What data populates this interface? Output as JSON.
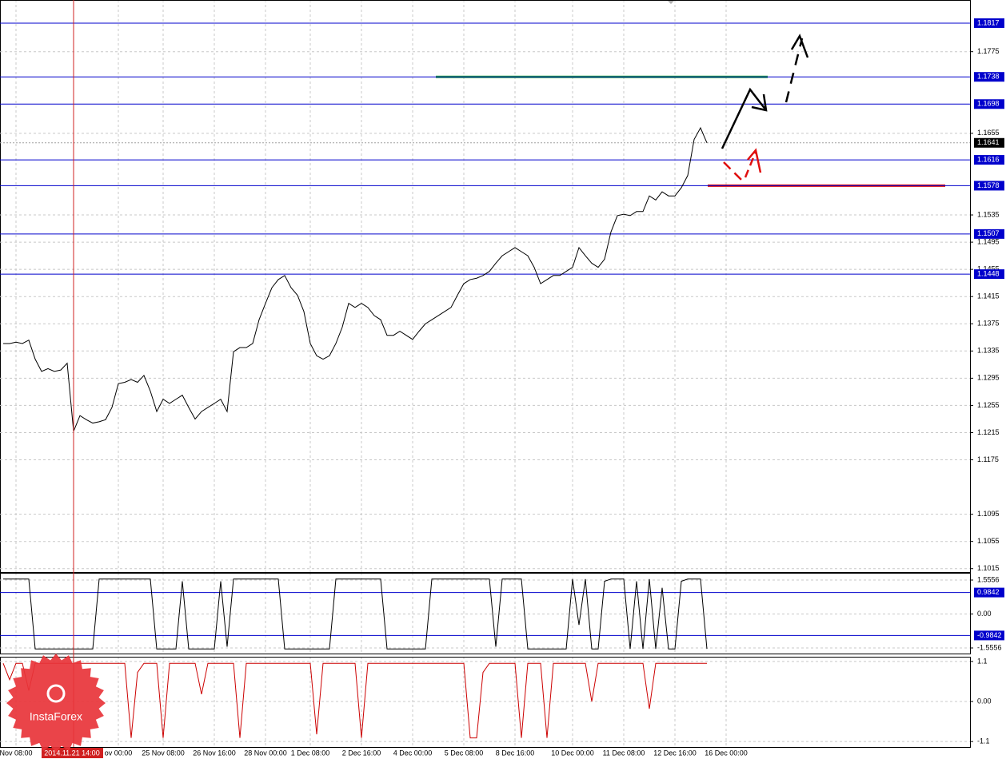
{
  "chart_data": [
    {
      "type": "line",
      "color": "#000000",
      "grid": true,
      "categories": [
        null,
        null,
        "Nov 08:00",
        null,
        null,
        null,
        null,
        null,
        null,
        null,
        null,
        null,
        null,
        null,
        null,
        null,
        null,
        null,
        "ov 00:00",
        null,
        null,
        null,
        null,
        null,
        null,
        "25 Nov 08:00",
        null,
        null,
        null,
        null,
        null,
        null,
        null,
        "26 Nov 16:00",
        null,
        null,
        null,
        null,
        null,
        null,
        null,
        "28 Nov 00:00",
        null,
        null,
        null,
        null,
        null,
        null,
        "1 Dec 08:00",
        null,
        null,
        null,
        null,
        null,
        null,
        null,
        "2 Dec 16:00",
        null,
        null,
        null,
        null,
        null,
        null,
        null,
        "4 Dec 00:00",
        null,
        null,
        null,
        null,
        null,
        null,
        null,
        "5 Dec 08:00",
        null,
        null,
        null,
        null,
        null,
        null,
        null,
        "8 Dec 16:00",
        null,
        null,
        null,
        null,
        null,
        null,
        null,
        null,
        "10 Dec 00:00",
        null,
        null,
        null,
        null,
        null,
        null,
        null,
        "11 Dec 08:00",
        null,
        null,
        null,
        null,
        null,
        null,
        null,
        "12 Dec 16:00",
        null,
        null,
        null,
        null,
        null,
        null,
        null,
        "16 Dec 00:00"
      ],
      "values": [
        1.1346,
        1.1346,
        1.1348,
        1.1346,
        1.1351,
        1.1323,
        1.1305,
        1.1309,
        1.1305,
        1.1307,
        1.1317,
        1.1217,
        1.124,
        1.1234,
        1.1229,
        1.1231,
        1.1234,
        1.1252,
        1.1287,
        1.1289,
        1.1293,
        1.1289,
        1.1299,
        1.1276,
        1.1246,
        1.1264,
        1.1258,
        1.1264,
        1.127,
        1.1252,
        1.1235,
        1.1246,
        1.1252,
        1.1258,
        1.1264,
        1.1246,
        1.1334,
        1.134,
        1.134,
        1.1346,
        1.1381,
        1.1405,
        1.1428,
        1.144,
        1.1446,
        1.1428,
        1.1417,
        1.1393,
        1.1346,
        1.1328,
        1.1323,
        1.1328,
        1.1346,
        1.137,
        1.1405,
        1.1399,
        1.1405,
        1.1399,
        1.1387,
        1.1381,
        1.1358,
        1.1358,
        1.1364,
        1.1358,
        1.1352,
        1.1364,
        1.1375,
        1.1381,
        1.1387,
        1.1393,
        1.1399,
        1.1417,
        1.1434,
        1.144,
        1.1442,
        1.1446,
        1.1452,
        1.1464,
        1.1475,
        1.1481,
        1.1487,
        1.1481,
        1.1475,
        1.1458,
        1.1434,
        1.144,
        1.1446,
        1.1446,
        1.1452,
        1.1458,
        1.1487,
        1.1475,
        1.1464,
        1.1458,
        1.147,
        1.151,
        1.1534,
        1.1536,
        1.1534,
        1.154,
        1.154,
        1.1563,
        1.1557,
        1.1569,
        1.1563,
        1.1563,
        1.1575,
        1.1593,
        1.1646,
        1.1663,
        1.1641,
        null,
        null,
        null
      ],
      "ylim": [
        1.101,
        1.1851
      ],
      "yticks": [
        1.1775,
        1.1655,
        1.1535,
        1.1495,
        1.1455,
        1.1415,
        1.1375,
        1.1335,
        1.1295,
        1.1255,
        1.1215,
        1.1175,
        1.1095,
        1.1055,
        1.1015
      ],
      "levels": [
        1.1817,
        1.1738,
        1.1698,
        1.1616,
        1.1578,
        1.1507,
        1.1448
      ],
      "level_color": "#0000cc",
      "current_price": 1.1641,
      "lines": [
        {
          "value": 1.1738,
          "color": "#22aa33"
        },
        {
          "value": 1.1578,
          "color": "#e01010"
        }
      ],
      "crosshair_label": "2014.11.21 14:00"
    },
    {
      "type": "line",
      "color": "#000000",
      "grid": true,
      "values": [
        1.6,
        1.6,
        1.6,
        1.6,
        1.6,
        -1.6,
        -1.6,
        -1.6,
        -1.6,
        -1.6,
        -1.6,
        -1.6,
        -1.6,
        -1.6,
        -1.6,
        1.6,
        1.6,
        1.6,
        1.6,
        1.6,
        1.6,
        1.6,
        1.6,
        1.6,
        -1.6,
        -1.6,
        -1.6,
        -1.6,
        1.5,
        -1.6,
        -1.6,
        -1.6,
        -1.6,
        -1.6,
        1.5,
        -1.5,
        1.6,
        1.6,
        1.6,
        1.6,
        1.6,
        1.6,
        1.6,
        1.6,
        -1.6,
        -1.6,
        -1.6,
        -1.6,
        -1.6,
        -1.6,
        -1.6,
        -1.6,
        1.6,
        1.6,
        1.6,
        1.6,
        1.6,
        1.6,
        1.6,
        1.6,
        -1.6,
        -1.6,
        -1.6,
        -1.6,
        -1.6,
        -1.6,
        -1.6,
        1.6,
        1.6,
        1.6,
        1.6,
        1.6,
        1.6,
        1.6,
        1.6,
        1.6,
        1.6,
        -1.5,
        1.6,
        1.6,
        1.6,
        1.6,
        -1.6,
        -1.6,
        -1.6,
        -1.6,
        -1.6,
        -1.6,
        -1.6,
        1.6,
        -0.5,
        1.6,
        -1.6,
        -1.6,
        1.5,
        1.6,
        1.6,
        1.6,
        -1.6,
        1.5,
        -1.6,
        1.6,
        -1.6,
        1.2,
        -1.6,
        -1.6,
        1.5,
        1.6,
        1.6,
        1.6,
        -1.6,
        null,
        null,
        null
      ],
      "ylim": [
        -1.812,
        1.885
      ],
      "yticks": [
        1.5556,
        {
          "value": 0,
          "label": "0.00"
        },
        -1.5556
      ],
      "levels": [
        0.9842,
        -0.9842
      ],
      "level_color": "#0000cc"
    },
    {
      "type": "line",
      "color": "#cc0000",
      "grid": true,
      "values": [
        1.05,
        0.6,
        1.05,
        1.05,
        0.3,
        1.05,
        1.05,
        1.05,
        1.05,
        1.05,
        1.05,
        1.05,
        1.05,
        1.05,
        1.05,
        1.05,
        1.05,
        1.05,
        1.05,
        1.05,
        -1,
        0.8,
        1.05,
        1.05,
        1.05,
        -1,
        1.05,
        1.05,
        1.05,
        1.05,
        1.05,
        0.2,
        1.05,
        1.05,
        1.05,
        1.05,
        1.05,
        -1,
        1.05,
        1.05,
        1.05,
        1.05,
        1.05,
        1.05,
        1.05,
        1.05,
        1.05,
        1.05,
        1.05,
        -0.9,
        1.05,
        1.05,
        1.05,
        1.05,
        1.05,
        1.05,
        -1,
        1.05,
        1.05,
        1.05,
        1.05,
        1.05,
        1.05,
        1.05,
        1.05,
        1.05,
        1.05,
        1.05,
        1.05,
        1.05,
        1.05,
        1.05,
        1.05,
        -1,
        -1,
        0.8,
        1.05,
        1.05,
        1.05,
        1.05,
        1.05,
        -1,
        1.05,
        1.05,
        1.05,
        -1,
        1.05,
        1.05,
        1.05,
        1.05,
        1.05,
        1.05,
        0,
        1.05,
        1.05,
        1.05,
        1.05,
        1.05,
        1.05,
        1.05,
        1.05,
        -0.2,
        1.05,
        1.05,
        1.05,
        1.05,
        1.05,
        1.05,
        1.05,
        1.05,
        1.05,
        null,
        null,
        null
      ],
      "ylim": [
        -1.25,
        1.23
      ],
      "yticks": [
        1.1,
        {
          "value": 0,
          "label": "0.00"
        },
        -1.1
      ]
    }
  ],
  "logo": {
    "text": "InstaForex"
  }
}
